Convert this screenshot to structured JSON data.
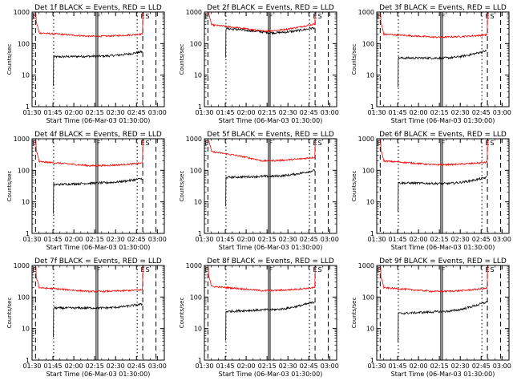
{
  "figure": {
    "ylabel": "Counts/sec",
    "xlabel": "Start Time (06-Mar-03 01:30:00)",
    "y_ticks": [
      "1",
      "10",
      "100",
      "1000"
    ],
    "x_ticks": [
      "01:30",
      "01:45",
      "02:00",
      "02:15",
      "02:30",
      "02:45",
      "03:00"
    ],
    "marker_labels": [
      "F",
      "E",
      "S"
    ],
    "colors": {
      "events": "#000000",
      "lld": "#ff0000",
      "background": "#ffffff"
    }
  },
  "chart_data": [
    {
      "type": "line",
      "title": "Det 1f BLACK = Events, RED = LLD",
      "xlabel": "Start Time (06-Mar-03 01:30:00)",
      "ylabel": "Counts/sec",
      "yscale": "log",
      "ylim": [
        1,
        1000
      ],
      "xlim_minutes": [
        0,
        95
      ],
      "series": [
        {
          "name": "Events",
          "color": "#000000",
          "start": 38,
          "mid": 40,
          "end": 55
        },
        {
          "name": "LLD",
          "color": "#ff0000",
          "start": 220,
          "mid": 170,
          "end": 200
        }
      ]
    },
    {
      "type": "line",
      "title": "Det 2f BLACK = Events, RED = LLD",
      "xlabel": "Start Time (06-Mar-03 01:30:00)",
      "ylabel": "Counts/sec",
      "yscale": "log",
      "ylim": [
        1,
        1000
      ],
      "xlim_minutes": [
        0,
        95
      ],
      "series": [
        {
          "name": "Events",
          "color": "#000000",
          "start": 300,
          "mid": 220,
          "end": 320
        },
        {
          "name": "LLD",
          "color": "#ff0000",
          "start": 400,
          "mid": 250,
          "end": 420
        }
      ]
    },
    {
      "type": "line",
      "title": "Det 3f BLACK = Events, RED = LLD",
      "xlabel": "Start Time (06-Mar-03 01:30:00)",
      "ylabel": "Counts/sec",
      "yscale": "log",
      "ylim": [
        1,
        1000
      ],
      "xlim_minutes": [
        0,
        95
      ],
      "series": [
        {
          "name": "Events",
          "color": "#000000",
          "start": 35,
          "mid": 35,
          "end": 60
        },
        {
          "name": "LLD",
          "color": "#ff0000",
          "start": 200,
          "mid": 160,
          "end": 190
        }
      ]
    },
    {
      "type": "line",
      "title": "Det 4f BLACK = Events, RED = LLD",
      "xlabel": "Start Time (06-Mar-03 01:30:00)",
      "ylabel": "Counts/sec",
      "yscale": "log",
      "ylim": [
        1,
        1000
      ],
      "xlim_minutes": [
        0,
        95
      ],
      "series": [
        {
          "name": "Events",
          "color": "#000000",
          "start": 35,
          "mid": 40,
          "end": 55
        },
        {
          "name": "LLD",
          "color": "#ff0000",
          "start": 190,
          "mid": 140,
          "end": 170
        }
      ]
    },
    {
      "type": "line",
      "title": "Det 5f BLACK = Events, RED = LLD",
      "xlabel": "Start Time (06-Mar-03 01:30:00)",
      "ylabel": "Counts/sec",
      "yscale": "log",
      "ylim": [
        1,
        1000
      ],
      "xlim_minutes": [
        0,
        95
      ],
      "series": [
        {
          "name": "Events",
          "color": "#000000",
          "start": 60,
          "mid": 65,
          "end": 100
        },
        {
          "name": "LLD",
          "color": "#ff0000",
          "start": 400,
          "mid": 200,
          "end": 260
        }
      ]
    },
    {
      "type": "line",
      "title": "Det 6f BLACK = Events, RED = LLD",
      "xlabel": "Start Time (06-Mar-03 01:30:00)",
      "ylabel": "Counts/sec",
      "yscale": "log",
      "ylim": [
        1,
        1000
      ],
      "xlim_minutes": [
        0,
        95
      ],
      "series": [
        {
          "name": "Events",
          "color": "#000000",
          "start": 40,
          "mid": 38,
          "end": 60
        },
        {
          "name": "LLD",
          "color": "#ff0000",
          "start": 200,
          "mid": 150,
          "end": 180
        }
      ]
    },
    {
      "type": "line",
      "title": "Det 7f BLACK = Events, RED = LLD",
      "xlabel": "Start Time (06-Mar-03 01:30:00)",
      "ylabel": "Counts/sec",
      "yscale": "log",
      "ylim": [
        1,
        1000
      ],
      "xlim_minutes": [
        0,
        95
      ],
      "series": [
        {
          "name": "Events",
          "color": "#000000",
          "start": 45,
          "mid": 45,
          "end": 60
        },
        {
          "name": "LLD",
          "color": "#ff0000",
          "start": 200,
          "mid": 150,
          "end": 170
        }
      ]
    },
    {
      "type": "line",
      "title": "Det 8f BLACK = Events, RED = LLD",
      "xlabel": "Start Time (06-Mar-03 01:30:00)",
      "ylabel": "Counts/sec",
      "yscale": "log",
      "ylim": [
        1,
        1000
      ],
      "xlim_minutes": [
        0,
        95
      ],
      "series": [
        {
          "name": "Events",
          "color": "#000000",
          "start": 35,
          "mid": 40,
          "end": 70
        },
        {
          "name": "LLD",
          "color": "#ff0000",
          "start": 220,
          "mid": 160,
          "end": 200
        }
      ]
    },
    {
      "type": "line",
      "title": "Det 9f BLACK = Events, RED = LLD",
      "xlabel": "Start Time (06-Mar-03 01:30:00)",
      "ylabel": "Counts/sec",
      "yscale": "log",
      "ylim": [
        1,
        1000
      ],
      "xlim_minutes": [
        0,
        95
      ],
      "series": [
        {
          "name": "Events",
          "color": "#000000",
          "start": 30,
          "mid": 35,
          "end": 70
        },
        {
          "name": "LLD",
          "color": "#ff0000",
          "start": 200,
          "mid": 150,
          "end": 190
        }
      ]
    }
  ]
}
